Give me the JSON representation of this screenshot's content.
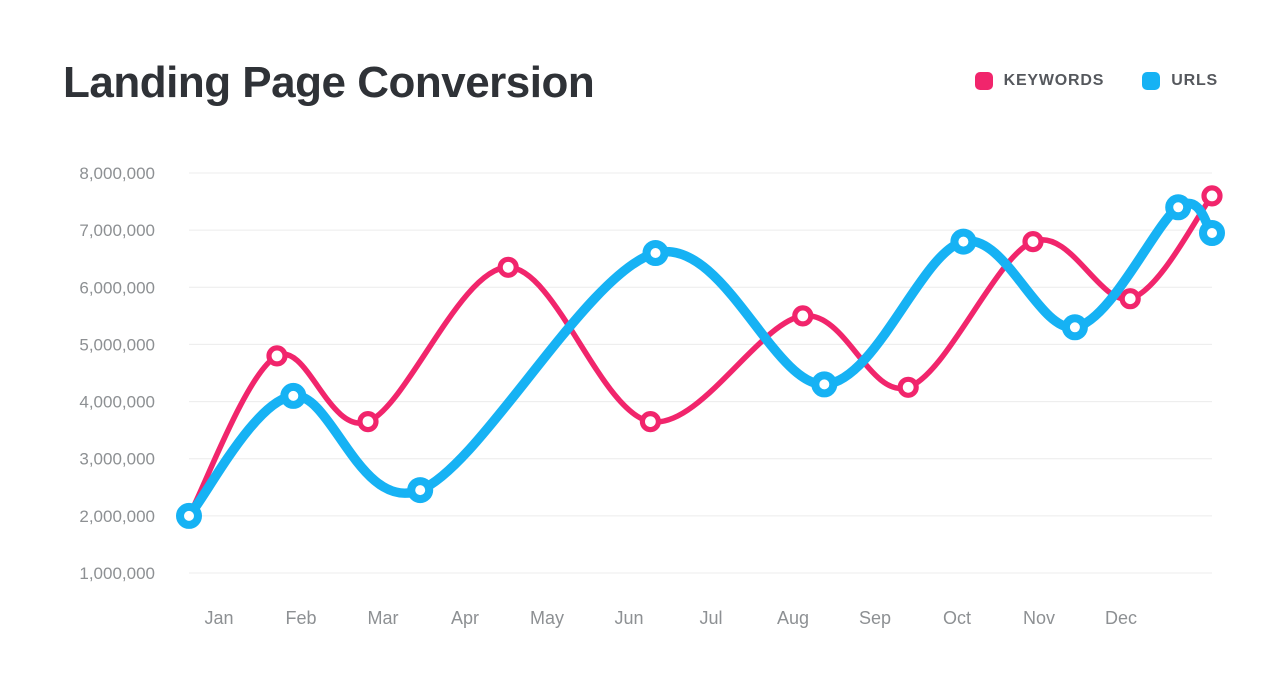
{
  "header": {
    "title": "Landing Page Conversion"
  },
  "legend": {
    "items": [
      {
        "label": "KEYWORDS",
        "color": "#f1256c"
      },
      {
        "label": "URLS",
        "color": "#16b2f4"
      }
    ]
  },
  "chart_data": {
    "type": "line",
    "title": "Landing Page Conversion",
    "categories": [
      "Jan",
      "Feb",
      "Mar",
      "Apr",
      "May",
      "Jun",
      "Jul",
      "Aug",
      "Sep",
      "Oct",
      "Nov",
      "Dec"
    ],
    "ylim": [
      1000000,
      8000000
    ],
    "grid": "horizontal",
    "legend_position": "top-right",
    "y_ticks": [
      {
        "value": 8000000,
        "label": "8,000,000"
      },
      {
        "value": 7000000,
        "label": "7,000,000"
      },
      {
        "value": 6000000,
        "label": "6,000,000"
      },
      {
        "value": 5000000,
        "label": "5,000,000"
      },
      {
        "value": 4000000,
        "label": "4,000,000"
      },
      {
        "value": 3000000,
        "label": "3,000,000"
      },
      {
        "value": 2000000,
        "label": "2,000,000"
      },
      {
        "value": 1000000,
        "label": "1,000,000"
      }
    ],
    "series": [
      {
        "name": "KEYWORDS",
        "color": "#f1256c",
        "line_width": 5.5,
        "marker": {
          "radius": 8,
          "ring_width": 5.2,
          "fill": "#ffffff"
        },
        "points": [
          {
            "x": 0.0,
            "value": 2000000
          },
          {
            "x": 0.086,
            "value": 4800000
          },
          {
            "x": 0.175,
            "value": 3650000
          },
          {
            "x": 0.312,
            "value": 6350000
          },
          {
            "x": 0.451,
            "value": 3650000
          },
          {
            "x": 0.6,
            "value": 5500000
          },
          {
            "x": 0.703,
            "value": 4250000
          },
          {
            "x": 0.825,
            "value": 6800000
          },
          {
            "x": 0.92,
            "value": 5800000
          },
          {
            "x": 1.0,
            "value": 7600000
          }
        ]
      },
      {
        "name": "URLS",
        "color": "#16b2f4",
        "line_width": 9.5,
        "marker": {
          "radius": 9,
          "ring_width": 8,
          "fill": "#ffffff"
        },
        "points": [
          {
            "x": 0.0,
            "value": 2000000
          },
          {
            "x": 0.102,
            "value": 4100000
          },
          {
            "x": 0.226,
            "value": 2450000
          },
          {
            "x": 0.456,
            "value": 6600000
          },
          {
            "x": 0.621,
            "value": 4300000
          },
          {
            "x": 0.757,
            "value": 6800000
          },
          {
            "x": 0.866,
            "value": 5300000
          },
          {
            "x": 0.967,
            "value": 7400000
          },
          {
            "x": 1.0,
            "value": 6950000
          }
        ]
      }
    ]
  }
}
